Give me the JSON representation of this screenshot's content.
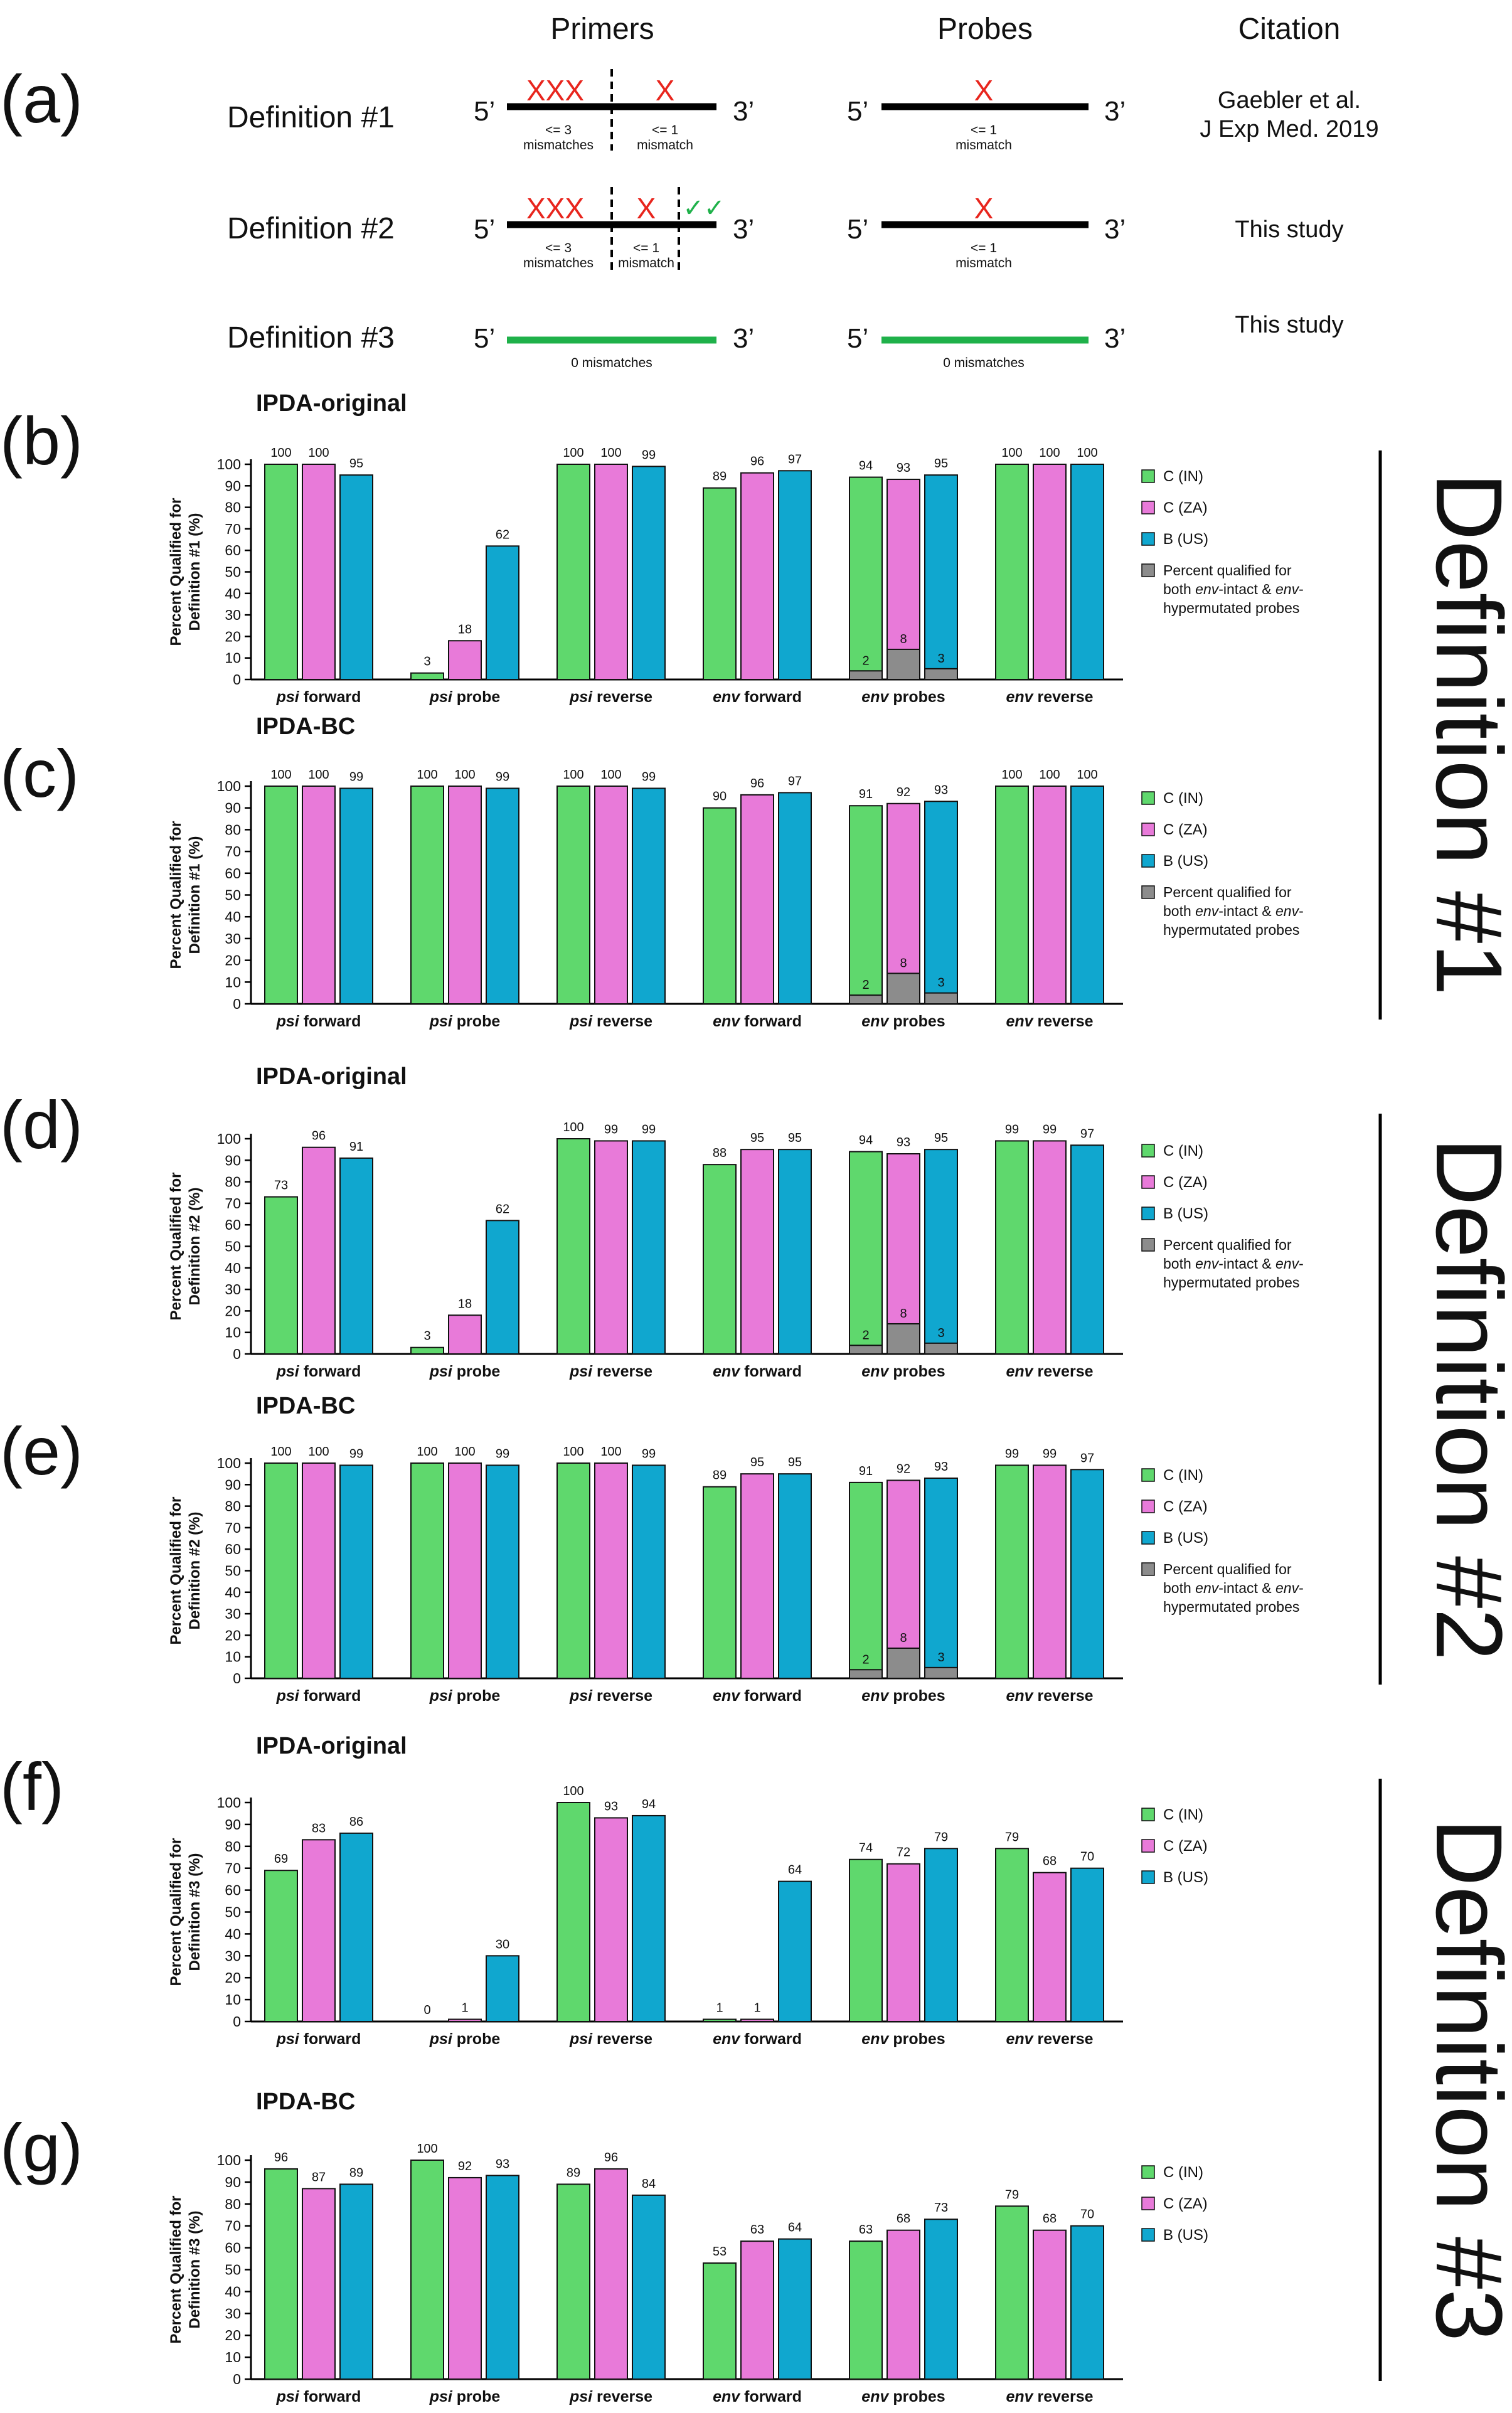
{
  "colors": {
    "c_in": "#5fd86d",
    "c_za": "#e87ad9",
    "b_us": "#10a7cf",
    "overlap": "#8c8c8c",
    "mismatch_red": "#e8251d",
    "match_green": "#1fb14a"
  },
  "panel_a": {
    "letter": "(a)",
    "col_headers": {
      "primers": "Primers",
      "probes": "Probes",
      "citation": "Citation"
    },
    "strand": {
      "five": "5’",
      "three": "3’"
    },
    "marks": {
      "xxx": "XXX",
      "x": "X",
      "checks": "✓✓"
    },
    "rows": [
      {
        "label": "Definition #1",
        "left_note": [
          "<= 3",
          "mismatches"
        ],
        "mid_note": [
          "<= 1",
          "mismatch"
        ],
        "probe_note": [
          "<= 1",
          "mismatch"
        ],
        "citation": [
          "Gaebler et al.",
          "J Exp Med. 2019"
        ]
      },
      {
        "label": "Definition #2",
        "left_note": [
          "<= 3",
          "mismatches"
        ],
        "mid_note": [
          "<= 1",
          "mismatch"
        ],
        "probe_note": [
          "<= 1",
          "mismatch"
        ],
        "citation": [
          "This study"
        ]
      },
      {
        "label": "Definition #3",
        "primer_note": "0 mismatches",
        "probe_note": "0 mismatches",
        "citation": [
          "This study"
        ]
      }
    ]
  },
  "side_labels": [
    "Definition #1",
    "Definition #2",
    "Definition #3"
  ],
  "chart_data": [
    {
      "type": "bar",
      "panel": "(b)",
      "title": "IPDA-original",
      "ylabel": [
        "Percent Qualified for",
        "Definition #1 (%)"
      ],
      "ylim": [
        0,
        100
      ],
      "yticks": [
        0,
        10,
        20,
        30,
        40,
        50,
        60,
        70,
        80,
        90,
        100
      ],
      "categories": [
        [
          "psi",
          "forward"
        ],
        [
          "psi",
          "probe"
        ],
        [
          "psi",
          "reverse"
        ],
        [
          "env",
          "forward"
        ],
        [
          "env",
          "probes"
        ],
        [
          "env",
          "reverse"
        ]
      ],
      "series": [
        {
          "name": "C (IN)",
          "values": [
            100,
            3,
            100,
            89,
            94,
            100
          ]
        },
        {
          "name": "C (ZA)",
          "values": [
            100,
            18,
            100,
            96,
            93,
            100
          ]
        },
        {
          "name": "B (US)",
          "values": [
            95,
            62,
            99,
            97,
            95,
            100
          ]
        }
      ],
      "overlap": {
        "name": "Percent qualified for both env-intact & env-hypermutated probes",
        "category_index": 4,
        "values": [
          2,
          8,
          3
        ],
        "bar_heights": [
          4,
          14,
          5
        ]
      },
      "legend": [
        "C (IN)",
        "C (ZA)",
        "B (US)",
        "Percent qualified for both env-intact & env-hypermutated probes"
      ]
    },
    {
      "type": "bar",
      "panel": "(c)",
      "title": "IPDA-BC",
      "ylabel": [
        "Percent Qualified for",
        "Definition #1 (%)"
      ],
      "ylim": [
        0,
        100
      ],
      "yticks": [
        0,
        10,
        20,
        30,
        40,
        50,
        60,
        70,
        80,
        90,
        100
      ],
      "categories": [
        [
          "psi",
          "forward"
        ],
        [
          "psi",
          "probe"
        ],
        [
          "psi",
          "reverse"
        ],
        [
          "env",
          "forward"
        ],
        [
          "env",
          "probes"
        ],
        [
          "env",
          "reverse"
        ]
      ],
      "series": [
        {
          "name": "C (IN)",
          "values": [
            100,
            100,
            100,
            90,
            91,
            100
          ]
        },
        {
          "name": "C (ZA)",
          "values": [
            100,
            100,
            100,
            96,
            92,
            100
          ]
        },
        {
          "name": "B (US)",
          "values": [
            99,
            99,
            99,
            97,
            93,
            100
          ]
        }
      ],
      "overlap": {
        "name": "Percent qualified for both env-intact & env-hypermutated probes",
        "category_index": 4,
        "values": [
          2,
          8,
          3
        ],
        "bar_heights": [
          4,
          14,
          5
        ]
      },
      "legend": [
        "C (IN)",
        "C (ZA)",
        "B (US)",
        "Percent qualified for both env-intact & env-hypermutated probes"
      ]
    },
    {
      "type": "bar",
      "panel": "(d)",
      "title": "IPDA-original",
      "ylabel": [
        "Percent Qualified for",
        "Definition #2 (%)"
      ],
      "ylim": [
        0,
        100
      ],
      "yticks": [
        0,
        10,
        20,
        30,
        40,
        50,
        60,
        70,
        80,
        90,
        100
      ],
      "categories": [
        [
          "psi",
          "forward"
        ],
        [
          "psi",
          "probe"
        ],
        [
          "psi",
          "reverse"
        ],
        [
          "env",
          "forward"
        ],
        [
          "env",
          "probes"
        ],
        [
          "env",
          "reverse"
        ]
      ],
      "series": [
        {
          "name": "C (IN)",
          "values": [
            73,
            3,
            100,
            88,
            94,
            99
          ]
        },
        {
          "name": "C (ZA)",
          "values": [
            96,
            18,
            99,
            95,
            93,
            99
          ]
        },
        {
          "name": "B (US)",
          "values": [
            91,
            62,
            99,
            95,
            95,
            97
          ]
        }
      ],
      "overlap": {
        "name": "Percent qualified for both env-intact & env-hypermutated probes",
        "category_index": 4,
        "values": [
          2,
          8,
          3
        ],
        "bar_heights": [
          4,
          14,
          5
        ]
      },
      "legend": [
        "C (IN)",
        "C (ZA)",
        "B (US)",
        "Percent qualified for both env-intact & env-hypermutated probes"
      ]
    },
    {
      "type": "bar",
      "panel": "(e)",
      "title": "IPDA-BC",
      "ylabel": [
        "Percent Qualified for",
        "Definition #2 (%)"
      ],
      "ylim": [
        0,
        100
      ],
      "yticks": [
        0,
        10,
        20,
        30,
        40,
        50,
        60,
        70,
        80,
        90,
        100
      ],
      "categories": [
        [
          "psi",
          "forward"
        ],
        [
          "psi",
          "probe"
        ],
        [
          "psi",
          "reverse"
        ],
        [
          "env",
          "forward"
        ],
        [
          "env",
          "probes"
        ],
        [
          "env",
          "reverse"
        ]
      ],
      "series": [
        {
          "name": "C (IN)",
          "values": [
            100,
            100,
            100,
            89,
            91,
            99
          ]
        },
        {
          "name": "C (ZA)",
          "values": [
            100,
            100,
            100,
            95,
            92,
            99
          ]
        },
        {
          "name": "B (US)",
          "values": [
            99,
            99,
            99,
            95,
            93,
            97
          ]
        }
      ],
      "overlap": {
        "name": "Percent qualified for both env-intact & env-hypermutated probes",
        "category_index": 4,
        "values": [
          2,
          8,
          3
        ],
        "bar_heights": [
          4,
          14,
          5
        ]
      },
      "legend": [
        "C (IN)",
        "C (ZA)",
        "B (US)",
        "Percent qualified for both env-intact & env-hypermutated probes"
      ]
    },
    {
      "type": "bar",
      "panel": "(f)",
      "title": "IPDA-original",
      "ylabel": [
        "Percent Qualified for",
        "Definition #3 (%)"
      ],
      "ylim": [
        0,
        100
      ],
      "yticks": [
        0,
        10,
        20,
        30,
        40,
        50,
        60,
        70,
        80,
        90,
        100
      ],
      "categories": [
        [
          "psi",
          "forward"
        ],
        [
          "psi",
          "probe"
        ],
        [
          "psi",
          "reverse"
        ],
        [
          "env",
          "forward"
        ],
        [
          "env",
          "probes"
        ],
        [
          "env",
          "reverse"
        ]
      ],
      "series": [
        {
          "name": "C (IN)",
          "values": [
            69,
            0,
            100,
            1,
            74,
            79
          ]
        },
        {
          "name": "C (ZA)",
          "values": [
            83,
            1,
            93,
            1,
            72,
            68
          ]
        },
        {
          "name": "B (US)",
          "values": [
            86,
            30,
            94,
            64,
            79,
            70
          ]
        }
      ],
      "legend": [
        "C (IN)",
        "C (ZA)",
        "B (US)"
      ]
    },
    {
      "type": "bar",
      "panel": "(g)",
      "title": "IPDA-BC",
      "ylabel": [
        "Percent Qualified for",
        "Definition #3 (%)"
      ],
      "ylim": [
        0,
        100
      ],
      "yticks": [
        0,
        10,
        20,
        30,
        40,
        50,
        60,
        70,
        80,
        90,
        100
      ],
      "categories": [
        [
          "psi",
          "forward"
        ],
        [
          "psi",
          "probe"
        ],
        [
          "psi",
          "reverse"
        ],
        [
          "env",
          "forward"
        ],
        [
          "env",
          "probes"
        ],
        [
          "env",
          "reverse"
        ]
      ],
      "series": [
        {
          "name": "C (IN)",
          "values": [
            96,
            100,
            89,
            53,
            63,
            79
          ]
        },
        {
          "name": "C (ZA)",
          "values": [
            87,
            92,
            96,
            63,
            68,
            68
          ]
        },
        {
          "name": "B (US)",
          "values": [
            89,
            93,
            84,
            64,
            73,
            70
          ]
        }
      ],
      "legend": [
        "C (IN)",
        "C (ZA)",
        "B (US)"
      ]
    }
  ]
}
